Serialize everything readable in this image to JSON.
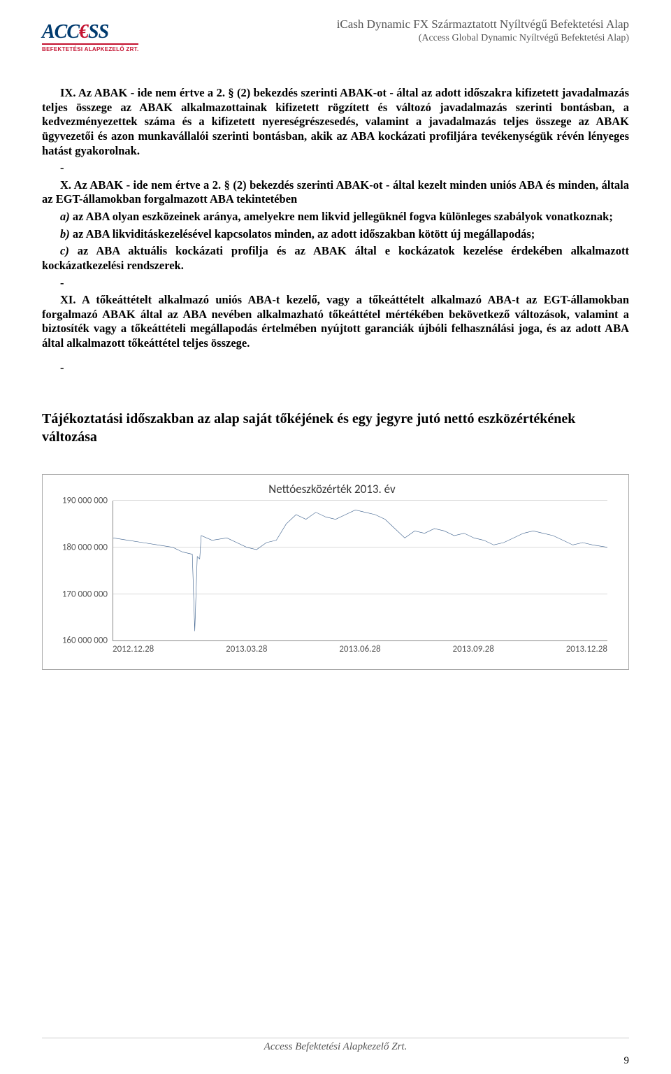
{
  "logo": {
    "main": "ACC€SS",
    "sub": "BEFEKTETÉSI ALAPKEZELŐ ZRT."
  },
  "header": {
    "title": "iCash Dynamic FX Származtatott Nyíltvégű Befektetési Alap",
    "subtitle": "(Access Global Dynamic Nyíltvégű Befektetési Alap)"
  },
  "paragraphs": {
    "p1a": "IX. Az ABAK - ide nem értve a 2. § (2) bekezdés szerinti ABAK-ot - által az adott időszakra kifizetett javadalmazás teljes összege az ABAK alkalmazottainak kifizetett rögzített és változó javadalmazás szerinti bontásban, a kedvezményezettek száma és a kifizetett nyereségrészesedés, valamint a javadalmazás teljes összege az ABAK ügyvezetői és azon munkavállalói szerinti bontásban, akik az ABA kockázati profiljára tevékenységük révén lényeges hatást gyakorolnak.",
    "dash1": "-",
    "p2a": "X. Az ABAK - ide nem értve a 2. § (2) bekezdés szerinti ABAK-ot - által kezelt minden uniós ABA és minden, általa az EGT-államokban forgalmazott ABA tekintetében",
    "p2b": "a) az ABA olyan eszközeinek aránya, amelyekre nem likvid jellegüknél fogva különleges szabályok vonatkoznak;",
    "p2c": "b) az ABA likviditáskezelésével kapcsolatos minden, az adott időszakban kötött új megállapodás;",
    "p2d": "c) az ABA aktuális kockázati profilja és az ABAK által e kockázatok kezelése érdekében alkalmazott kockázatkezelési rendszerek.",
    "dash2": "-",
    "p3a": "XI. A tőkeáttételt alkalmazó uniós ABA-t kezelő, vagy a tőkeáttételt alkalmazó ABA-t az EGT-államokban forgalmazó ABAK által az ABA nevében alkalmazható tőkeáttétel mértékében bekövetkező változások, valamint a biztosíték vagy a tőkeáttételi megállapodás értelmében nyújtott garanciák újbóli felhasználási joga, és az adott ABA által alkalmazott tőkeáttétel teljes összege.",
    "dash3": "-"
  },
  "section_heading": "Tájékoztatási időszakban az alap saját tőkéjének és egy jegyre jutó nettó eszközértékének változása",
  "chart": {
    "type": "line",
    "title": "Nettóeszközérték 2013. év",
    "y_labels": [
      "190 000 000",
      "180 000 000",
      "170 000 000",
      "160 000 000"
    ],
    "y_values": [
      190000000,
      180000000,
      170000000,
      160000000
    ],
    "ylim": [
      160000000,
      190000000
    ],
    "x_labels": [
      "2012.12.28",
      "2013.03.28",
      "2013.06.28",
      "2013.09.28",
      "2013.12.28"
    ],
    "line_color": "#385d8a",
    "line_width": 2,
    "grid_color": "#d9d9d9",
    "background_color": "#ffffff",
    "border_color": "#aaaaaa",
    "label_font": "Calibri",
    "label_fontsize": 13,
    "title_fontsize": 17,
    "data_points": [
      [
        0,
        182000000
      ],
      [
        0.03,
        181500000
      ],
      [
        0.06,
        181000000
      ],
      [
        0.09,
        180500000
      ],
      [
        0.12,
        180000000
      ],
      [
        0.14,
        179000000
      ],
      [
        0.16,
        178500000
      ],
      [
        0.165,
        162000000
      ],
      [
        0.17,
        178000000
      ],
      [
        0.175,
        177500000
      ],
      [
        0.178,
        182500000
      ],
      [
        0.2,
        181500000
      ],
      [
        0.23,
        182000000
      ],
      [
        0.25,
        181000000
      ],
      [
        0.27,
        180000000
      ],
      [
        0.29,
        179500000
      ],
      [
        0.31,
        181000000
      ],
      [
        0.33,
        181500000
      ],
      [
        0.35,
        185000000
      ],
      [
        0.37,
        187000000
      ],
      [
        0.39,
        186000000
      ],
      [
        0.41,
        187500000
      ],
      [
        0.43,
        186500000
      ],
      [
        0.45,
        186000000
      ],
      [
        0.47,
        187000000
      ],
      [
        0.49,
        188000000
      ],
      [
        0.51,
        187500000
      ],
      [
        0.53,
        187000000
      ],
      [
        0.55,
        186000000
      ],
      [
        0.57,
        184000000
      ],
      [
        0.59,
        182000000
      ],
      [
        0.61,
        183500000
      ],
      [
        0.63,
        183000000
      ],
      [
        0.65,
        184000000
      ],
      [
        0.67,
        183500000
      ],
      [
        0.69,
        182500000
      ],
      [
        0.71,
        183000000
      ],
      [
        0.73,
        182000000
      ],
      [
        0.75,
        181500000
      ],
      [
        0.77,
        180500000
      ],
      [
        0.79,
        181000000
      ],
      [
        0.81,
        182000000
      ],
      [
        0.83,
        183000000
      ],
      [
        0.85,
        183500000
      ],
      [
        0.87,
        183000000
      ],
      [
        0.89,
        182500000
      ],
      [
        0.91,
        181500000
      ],
      [
        0.93,
        180500000
      ],
      [
        0.95,
        181000000
      ],
      [
        0.97,
        180500000
      ],
      [
        1.0,
        180000000
      ]
    ]
  },
  "footer": {
    "text": "Access Befektetési Alapkezelő Zrt.",
    "page_number": "9"
  }
}
